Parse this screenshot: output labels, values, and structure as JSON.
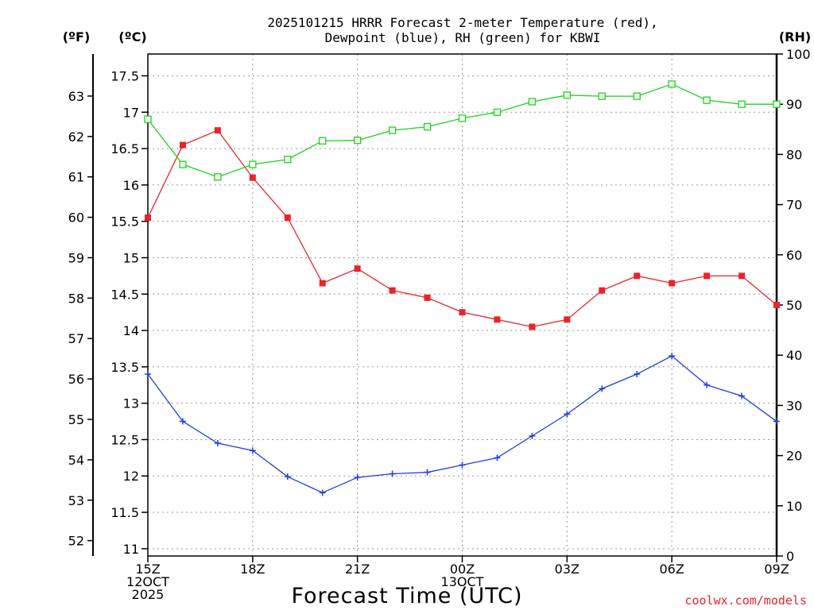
{
  "chart_data": {
    "type": "line",
    "title_line1": "2025101215 HRRR Forecast 2-meter Temperature (red),",
    "title_line2": "Dewpoint (blue), RH (green) for KBWI",
    "xlabel": "Forecast Time (UTC)",
    "credit": "coolwx.com/models",
    "units": {
      "fahrenheit": "(ºF)",
      "celsius": "(ºC)",
      "rh": "(RH)"
    },
    "x": [
      0,
      1,
      2,
      3,
      4,
      5,
      6,
      7,
      8,
      9,
      10,
      11,
      12,
      13,
      14,
      15,
      16,
      17,
      18
    ],
    "xlim": [
      0,
      18
    ],
    "x_ticks": [
      {
        "x": 0,
        "lines": [
          "15Z",
          "12OCT",
          "2025"
        ]
      },
      {
        "x": 3,
        "lines": [
          "18Z"
        ]
      },
      {
        "x": 6,
        "lines": [
          "21Z"
        ]
      },
      {
        "x": 9,
        "lines": [
          "00Z",
          "13OCT"
        ]
      },
      {
        "x": 12,
        "lines": [
          "03Z"
        ]
      },
      {
        "x": 15,
        "lines": [
          "06Z"
        ]
      },
      {
        "x": 18,
        "lines": [
          "09Z"
        ]
      }
    ],
    "celsius_axis": {
      "ylim": [
        10.9,
        17.8
      ],
      "ticks": [
        "11",
        "11.5",
        "12",
        "12.5",
        "13",
        "13.5",
        "14",
        "14.5",
        "15",
        "15.5",
        "16",
        "16.5",
        "17",
        "17.5"
      ]
    },
    "fahrenheit_axis": {
      "ticks": [
        "52",
        "53",
        "54",
        "55",
        "56",
        "57",
        "58",
        "59",
        "60",
        "61",
        "62",
        "63"
      ]
    },
    "rh_axis": {
      "ylim": [
        0,
        100
      ],
      "ticks": [
        "0",
        "10",
        "20",
        "30",
        "40",
        "50",
        "60",
        "70",
        "80",
        "90",
        "100"
      ]
    },
    "series": [
      {
        "name": "Temperature",
        "axis": "celsius",
        "color": "#e8242c",
        "marker": "filled-square",
        "values": [
          15.55,
          16.55,
          16.75,
          16.1,
          15.55,
          14.65,
          14.85,
          14.55,
          14.45,
          14.25,
          14.15,
          14.05,
          14.15,
          14.55,
          14.75,
          14.65,
          14.75,
          14.75,
          14.35
        ]
      },
      {
        "name": "Dewpoint",
        "axis": "celsius",
        "color": "#1f3fe0",
        "marker": "plus",
        "values": [
          13.4,
          12.75,
          12.45,
          12.35,
          11.99,
          11.77,
          11.98,
          12.03,
          12.05,
          12.15,
          12.25,
          12.55,
          12.85,
          13.2,
          13.4,
          13.65,
          13.25,
          13.1,
          12.75
        ]
      },
      {
        "name": "RH",
        "axis": "rh",
        "color": "#1ed11e",
        "marker": "open-square",
        "values": [
          87,
          78,
          75.5,
          78,
          79,
          82.7,
          82.8,
          84.8,
          85.5,
          87.2,
          88.4,
          90.5,
          91.8,
          91.6,
          91.6,
          94,
          90.8,
          90,
          90
        ]
      }
    ]
  }
}
